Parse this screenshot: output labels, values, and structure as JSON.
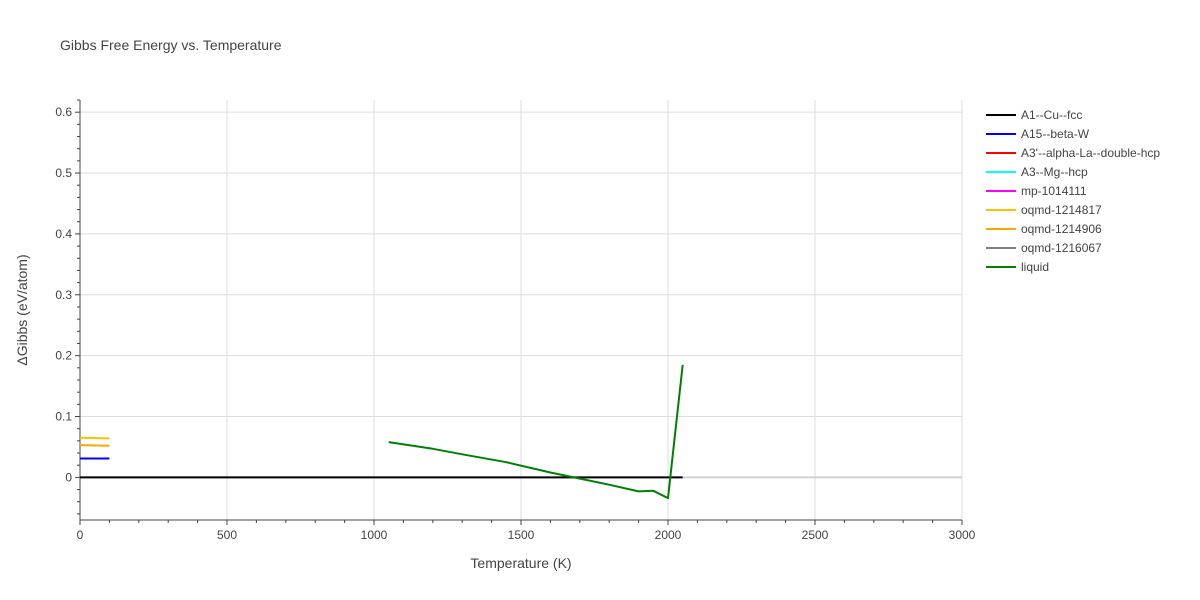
{
  "chart_data": {
    "type": "line",
    "title": "Gibbs Free Energy vs. Temperature",
    "xlabel": "Temperature (K)",
    "ylabel": "ΔGibbs (eV/atom)",
    "xlim": [
      0,
      3000
    ],
    "ylim": [
      -0.07,
      0.62
    ],
    "x_ticks": [
      0,
      500,
      1000,
      1500,
      2000,
      2500,
      3000
    ],
    "x_tick_labels": [
      "0",
      "500",
      "1000",
      "1500",
      "2000",
      "2500",
      "3000"
    ],
    "y_ticks": [
      0,
      0.1,
      0.2,
      0.3,
      0.4,
      0.5,
      0.6
    ],
    "y_tick_labels": [
      "0",
      "0.1",
      "0.2",
      "0.3",
      "0.4",
      "0.5",
      "0.6"
    ],
    "grid": true,
    "legend_position": "right",
    "series": [
      {
        "name": "A1--Cu--fcc",
        "color": "#000000",
        "x": [
          0,
          2050
        ],
        "y": [
          0,
          0
        ]
      },
      {
        "name": "A15--beta-W",
        "color": "#0000ff",
        "x": [
          0,
          100
        ],
        "y": [
          0.031,
          0.031
        ]
      },
      {
        "name": "A3'--alpha-La--double-hcp",
        "color": "#ff0000",
        "x": [],
        "y": []
      },
      {
        "name": "A3--Mg--hcp",
        "color": "#00ffff",
        "x": [],
        "y": []
      },
      {
        "name": "mp-1014111",
        "color": "#ff00ff",
        "x": [],
        "y": []
      },
      {
        "name": "oqmd-1214817",
        "color": "#ffc000",
        "x": [
          0,
          100
        ],
        "y": [
          0.065,
          0.064
        ]
      },
      {
        "name": "oqmd-1214906",
        "color": "#ffa500",
        "x": [
          0,
          100
        ],
        "y": [
          0.053,
          0.052
        ]
      },
      {
        "name": "oqmd-1216067",
        "color": "#808080",
        "x": [],
        "y": []
      },
      {
        "name": "liquid",
        "color": "#008000",
        "x": [
          1050,
          1200,
          1300,
          1450,
          1600,
          1700,
          1800,
          1900,
          1950,
          2000,
          2050
        ],
        "y": [
          0.058,
          0.047,
          0.038,
          0.025,
          0.008,
          -0.002,
          -0.012,
          -0.023,
          -0.022,
          -0.034,
          0.185
        ]
      }
    ]
  }
}
